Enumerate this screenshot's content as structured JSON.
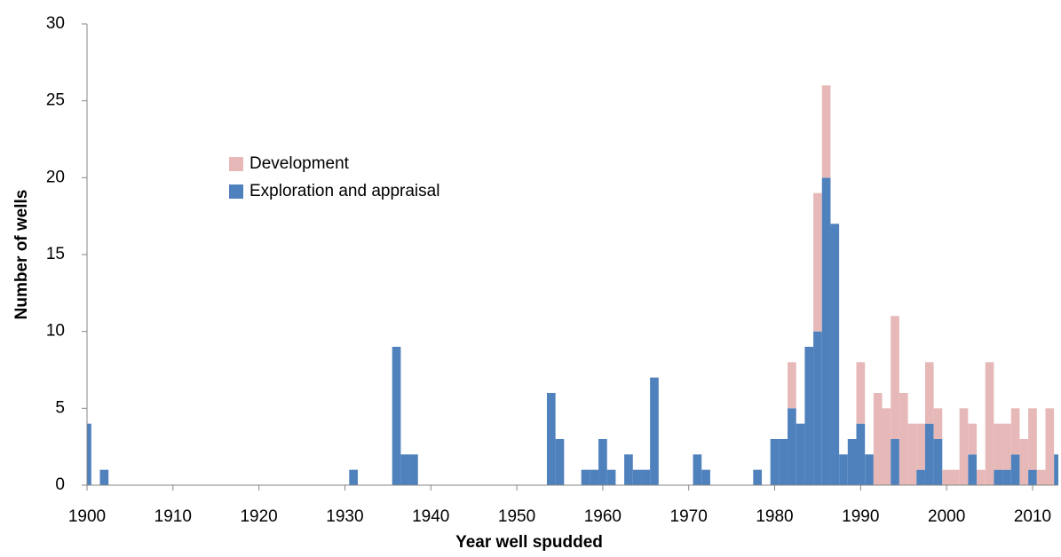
{
  "chart_data": {
    "type": "bar",
    "stacked": true,
    "x_label": "Year well spudded",
    "y_label": "Number of wells",
    "x": [
      1900,
      1902,
      1931,
      1936,
      1937,
      1938,
      1954,
      1955,
      1958,
      1959,
      1960,
      1961,
      1963,
      1964,
      1965,
      1966,
      1971,
      1972,
      1978,
      1980,
      1981,
      1982,
      1983,
      1984,
      1985,
      1986,
      1987,
      1988,
      1989,
      1990,
      1991,
      1992,
      1993,
      1994,
      1995,
      1996,
      1997,
      1998,
      1999,
      2000,
      2001,
      2002,
      2003,
      2004,
      2005,
      2006,
      2007,
      2008,
      2009,
      2010,
      2011,
      2012,
      2013
    ],
    "series": [
      {
        "name": "Exploration and appraisal",
        "color": "#4f81bd",
        "values": [
          4,
          1,
          1,
          9,
          2,
          2,
          6,
          3,
          1,
          1,
          3,
          1,
          2,
          1,
          1,
          7,
          2,
          1,
          1,
          3,
          3,
          5,
          4,
          9,
          10,
          20,
          17,
          2,
          3,
          4,
          2,
          0,
          0,
          3,
          0,
          0,
          1,
          4,
          3,
          0,
          0,
          0,
          2,
          0,
          0,
          1,
          1,
          2,
          0,
          1,
          0,
          0,
          2
        ]
      },
      {
        "name": "Development",
        "color": "#e6b9b8",
        "values": [
          0,
          0,
          0,
          0,
          0,
          0,
          0,
          0,
          0,
          0,
          0,
          0,
          0,
          0,
          0,
          0,
          0,
          0,
          0,
          0,
          0,
          3,
          0,
          0,
          9,
          6,
          0,
          0,
          0,
          4,
          0,
          6,
          5,
          8,
          6,
          4,
          3,
          4,
          2,
          1,
          1,
          5,
          2,
          1,
          8,
          3,
          3,
          3,
          3,
          4,
          1,
          5,
          0
        ]
      }
    ],
    "xlim": [
      1900,
      2013
    ],
    "xticks": [
      1900,
      1910,
      1920,
      1930,
      1940,
      1950,
      1960,
      1970,
      1980,
      1990,
      2000,
      2010
    ],
    "ylim": [
      0,
      30
    ],
    "yticks": [
      0,
      5,
      10,
      15,
      20,
      25,
      30
    ],
    "grid": false,
    "legend": "upper left"
  }
}
